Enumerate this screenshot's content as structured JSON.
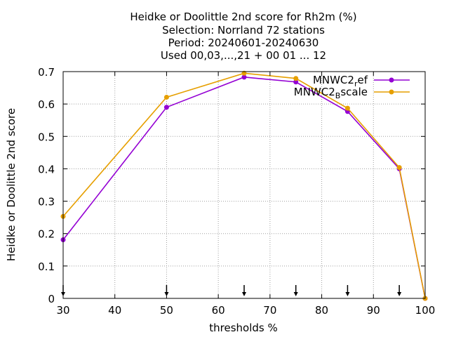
{
  "chart_data": {
    "type": "line",
    "title_lines": [
      "Heidke or Doolittle 2nd score  for Rh2m (%)",
      "Selection: Norrland     72 stations",
      "Period: 20240601-20240630",
      "Used 00,03,...,21 + 00 01 ... 12"
    ],
    "xlabel": "thresholds %",
    "ylabel": "Heidke or Doolittle 2nd score",
    "xlim": [
      30,
      100
    ],
    "ylim": [
      0,
      0.7
    ],
    "x_ticks": [
      "30",
      "40",
      "50",
      "60",
      "70",
      "80",
      "90",
      "100"
    ],
    "y_ticks": [
      "0",
      "0.1",
      "0.2",
      "0.3",
      "0.4",
      "0.5",
      "0.6",
      "0.7"
    ],
    "grid": true,
    "legend_position": "top-right",
    "arrow_markers_x": [
      30,
      50,
      65,
      75,
      85,
      95
    ],
    "series": [
      {
        "name_main": "MNWC2",
        "name_sub": "r",
        "name_rest": "ef",
        "color": "#9400d3",
        "x": [
          30,
          50,
          65,
          75,
          85,
          95,
          100
        ],
        "y": [
          0.181,
          0.59,
          0.683,
          0.668,
          0.577,
          0.4,
          0.0
        ]
      },
      {
        "name_main": "MNWC2",
        "name_sub": "B",
        "name_rest": "scale",
        "color": "#e69f00",
        "x": [
          30,
          50,
          65,
          75,
          85,
          95,
          100
        ],
        "y": [
          0.253,
          0.621,
          0.695,
          0.679,
          0.587,
          0.404,
          0.0
        ]
      }
    ]
  }
}
